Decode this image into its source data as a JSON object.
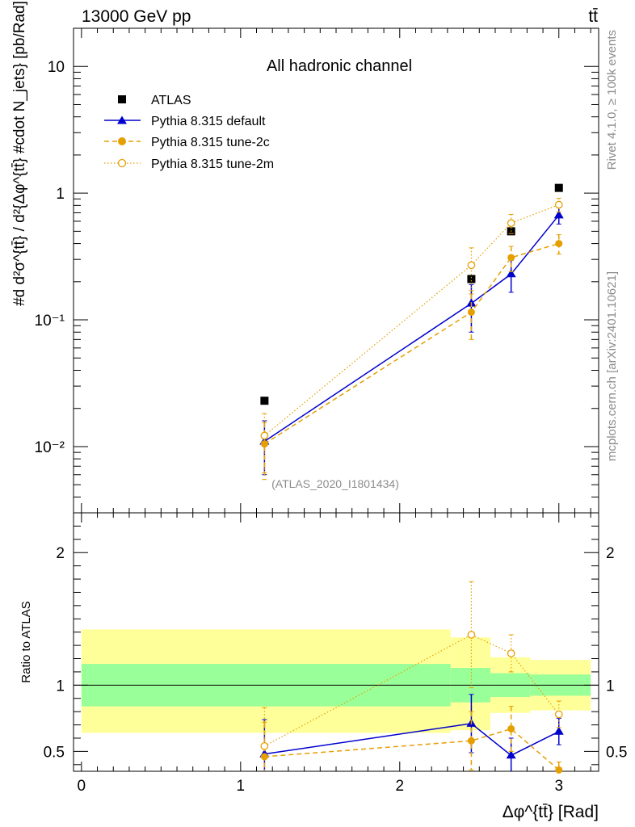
{
  "header": {
    "left": "13000 GeV pp",
    "right": "tt̄"
  },
  "side_labels": {
    "rivet": "Rivet 4.1.0, ≥ 100k events",
    "mcplots": "mcplots.cern.ch [arXiv:2401.10621]"
  },
  "chart_data": [
    {
      "type": "scatter",
      "panel": "main",
      "title": "All hadronic channel",
      "watermark": "(ATLAS_2020_I1801434)",
      "ylabel": "#d d²σ^{tt̄} / d²{Δφ^{tt̄} #cdot N_jets} [pb/Rad]",
      "yscale": "log",
      "ylim": [
        0.003,
        20
      ],
      "xlim": [
        -0.05,
        3.25
      ],
      "ytick_labels": [
        "10",
        "1",
        "10⁻¹",
        "10⁻²"
      ],
      "x": [
        1.15,
        2.45,
        2.7,
        3.0
      ],
      "series": [
        {
          "name": "ATLAS",
          "color": "#000000",
          "marker": "square",
          "values": [
            0.023,
            0.21,
            0.5,
            1.1
          ],
          "errors": [
            0.0,
            0.0,
            0.0,
            0.0
          ]
        },
        {
          "name": "Pythia 8.315 default",
          "color": "#0000cc",
          "marker": "triangle",
          "line": "solid",
          "values": [
            0.011,
            0.135,
            0.23,
            0.67
          ],
          "errors": [
            0.005,
            0.055,
            0.065,
            0.1
          ]
        },
        {
          "name": "Pythia 8.315 tune-2c",
          "color": "#e69f00",
          "marker": "filled-circle",
          "line": "dashed",
          "values": [
            0.0105,
            0.115,
            0.31,
            0.4
          ],
          "errors": [
            0.005,
            0.045,
            0.07,
            0.07
          ]
        },
        {
          "name": "Pythia 8.315 tune-2m",
          "color": "#e69f00",
          "marker": "open-circle",
          "line": "dotted",
          "values": [
            0.0122,
            0.27,
            0.58,
            0.81
          ],
          "errors": [
            0.006,
            0.1,
            0.1,
            0.1
          ]
        }
      ]
    },
    {
      "type": "scatter",
      "panel": "ratio",
      "ylabel": "Ratio to ATLAS",
      "xlabel": "Δφ^{tt̄} [Rad]",
      "ylim": [
        0.35,
        2.3
      ],
      "xlim": [
        -0.05,
        3.25
      ],
      "ytick_labels": [
        "2",
        "1",
        "0.5"
      ],
      "xtick_labels": [
        "0",
        "1",
        "2",
        "3"
      ],
      "bands": [
        {
          "x0": 0.0,
          "x1": 2.32,
          "yellow": [
            0.64,
            1.42
          ],
          "green": [
            0.84,
            1.16
          ]
        },
        {
          "x0": 2.32,
          "x1": 2.57,
          "yellow": [
            0.66,
            1.36
          ],
          "green": [
            0.87,
            1.13
          ]
        },
        {
          "x0": 2.57,
          "x1": 2.82,
          "yellow": [
            0.79,
            1.21
          ],
          "green": [
            0.91,
            1.09
          ]
        },
        {
          "x0": 2.82,
          "x1": 3.2,
          "yellow": [
            0.81,
            1.19
          ],
          "green": [
            0.92,
            1.08
          ]
        }
      ],
      "series": [
        {
          "name": "Pythia 8.315 default",
          "color": "#0000cc",
          "marker": "triangle",
          "line": "solid",
          "x": [
            1.15,
            2.45,
            2.7,
            3.0
          ],
          "values": [
            0.48,
            0.71,
            0.47,
            0.65
          ],
          "errors": [
            0.26,
            0.22,
            0.13,
            0.1
          ]
        },
        {
          "name": "Pythia 8.315 tune-2c",
          "color": "#e69f00",
          "marker": "filled-circle",
          "line": "dashed",
          "x": [
            1.15,
            2.45,
            2.7,
            3.0
          ],
          "values": [
            0.46,
            0.58,
            0.67,
            0.36
          ],
          "errors": [
            0.26,
            0.22,
            0.17,
            0.06
          ]
        },
        {
          "name": "Pythia 8.315 tune-2m",
          "color": "#e69f00",
          "marker": "open-circle",
          "line": "dotted",
          "x": [
            1.15,
            2.45,
            2.7,
            3.0
          ],
          "values": [
            0.54,
            1.38,
            1.24,
            0.78
          ],
          "errors": [
            0.29,
            0.4,
            0.14,
            0.1
          ]
        }
      ]
    }
  ]
}
